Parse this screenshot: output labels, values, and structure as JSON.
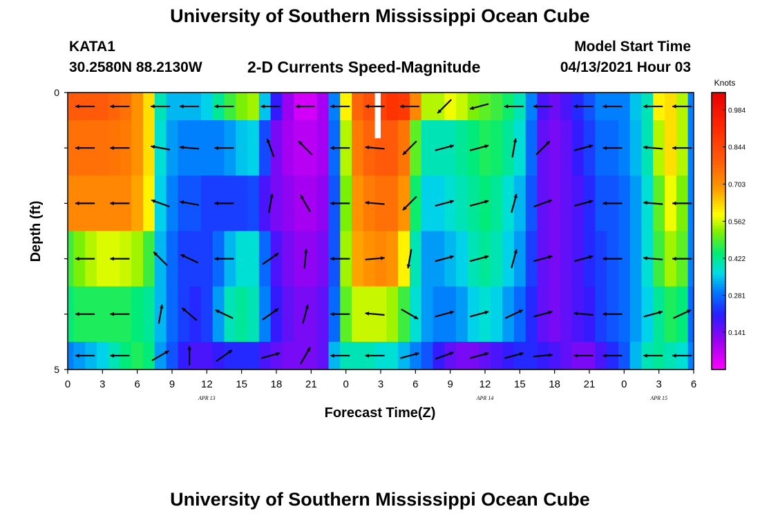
{
  "header": {
    "title": "University of Southern Mississippi Ocean Cube",
    "station_id": "KATA1",
    "station_coords": "30.2580N  88.2130W",
    "chart_title": "2-D Currents Speed-Magnitude",
    "model_start_label": "Model Start Time",
    "model_start_value": "04/13/2021 Hour 03"
  },
  "footer": {
    "title": "University of Southern Mississippi Ocean Cube"
  },
  "colorbar": {
    "unit": "Knots",
    "range": [
      0.0,
      1.05
    ],
    "tick_labels": [
      "0.141",
      "0.281",
      "0.422",
      "0.562",
      "0.703",
      "0.844",
      "0.984"
    ]
  },
  "chart_data": {
    "type": "heatmap",
    "title": "2-D Currents Speed-Magnitude",
    "xlabel": "Forecast Time(Z)",
    "ylabel": "Depth (ft)",
    "x_range_hours": [
      0,
      54
    ],
    "y_range_ft": [
      0,
      5
    ],
    "y_tick_labels": [
      "0",
      "5"
    ],
    "x_tick_labels": [
      "0",
      "3",
      "6",
      "9",
      "12",
      "15",
      "18",
      "21",
      "0",
      "3",
      "6",
      "9",
      "12",
      "15",
      "18",
      "21",
      "0",
      "3",
      "6"
    ],
    "date_labels": [
      {
        "text": "APR 13",
        "hour": 12
      },
      {
        "text": "APR 14",
        "hour": 36
      },
      {
        "text": "APR 15",
        "hour": 51
      }
    ],
    "depth_rows_ft": [
      0.25,
      1.0,
      2.0,
      3.0,
      4.0,
      4.75
    ],
    "time_hours": [
      0,
      1,
      2,
      3,
      4,
      5,
      6,
      7,
      8,
      9,
      10,
      11,
      12,
      13,
      14,
      15,
      16,
      17,
      18,
      19,
      20,
      21,
      22,
      23,
      24,
      25,
      26,
      27,
      28,
      29,
      30,
      31,
      32,
      33,
      34,
      35,
      36,
      37,
      38,
      39,
      40,
      41,
      42,
      43,
      44,
      45,
      46,
      47,
      48,
      49,
      50,
      51,
      52,
      53,
      54
    ],
    "speed_knots": [
      [
        0.8,
        0.8,
        0.8,
        0.8,
        0.78,
        0.76,
        0.7,
        0.62,
        0.4,
        0.34,
        0.34,
        0.34,
        0.36,
        0.42,
        0.48,
        0.52,
        0.54,
        0.35,
        0.2,
        0.11,
        0.05,
        0.05,
        0.1,
        0.3,
        0.6,
        0.78,
        0.82,
        0.86,
        0.9,
        0.88,
        0.72,
        0.55,
        0.55,
        0.58,
        0.56,
        0.52,
        0.5,
        0.48,
        0.45,
        0.4,
        0.3,
        0.18,
        0.15,
        0.18,
        0.22,
        0.26,
        0.3,
        0.3,
        0.3,
        0.35,
        0.4,
        0.6,
        0.62,
        0.55,
        0.3
      ],
      [
        0.76,
        0.76,
        0.76,
        0.76,
        0.75,
        0.74,
        0.7,
        0.62,
        0.38,
        0.32,
        0.3,
        0.3,
        0.3,
        0.3,
        0.32,
        0.35,
        0.36,
        0.25,
        0.14,
        0.1,
        0.08,
        0.08,
        0.1,
        0.28,
        0.55,
        0.74,
        0.78,
        0.8,
        0.8,
        0.75,
        0.5,
        0.4,
        0.4,
        0.4,
        0.42,
        0.44,
        0.46,
        0.45,
        0.42,
        0.38,
        0.28,
        0.16,
        0.14,
        0.16,
        0.2,
        0.24,
        0.28,
        0.28,
        0.3,
        0.34,
        0.4,
        0.55,
        0.62,
        0.55,
        0.3
      ],
      [
        0.72,
        0.72,
        0.72,
        0.72,
        0.72,
        0.72,
        0.68,
        0.6,
        0.36,
        0.3,
        0.26,
        0.26,
        0.24,
        0.24,
        0.24,
        0.24,
        0.25,
        0.18,
        0.14,
        0.12,
        0.1,
        0.1,
        0.12,
        0.26,
        0.52,
        0.7,
        0.74,
        0.76,
        0.76,
        0.7,
        0.45,
        0.36,
        0.36,
        0.38,
        0.4,
        0.42,
        0.44,
        0.42,
        0.38,
        0.34,
        0.26,
        0.16,
        0.14,
        0.16,
        0.18,
        0.22,
        0.26,
        0.26,
        0.28,
        0.32,
        0.38,
        0.5,
        0.58,
        0.52,
        0.3
      ],
      [
        0.48,
        0.52,
        0.55,
        0.57,
        0.57,
        0.56,
        0.54,
        0.48,
        0.34,
        0.28,
        0.24,
        0.24,
        0.24,
        0.28,
        0.34,
        0.38,
        0.38,
        0.28,
        0.18,
        0.14,
        0.12,
        0.12,
        0.14,
        0.26,
        0.54,
        0.68,
        0.7,
        0.72,
        0.7,
        0.6,
        0.4,
        0.32,
        0.32,
        0.34,
        0.36,
        0.4,
        0.42,
        0.4,
        0.36,
        0.32,
        0.24,
        0.16,
        0.14,
        0.16,
        0.18,
        0.22,
        0.24,
        0.26,
        0.28,
        0.32,
        0.38,
        0.48,
        0.54,
        0.5,
        0.3
      ],
      [
        0.44,
        0.46,
        0.46,
        0.46,
        0.46,
        0.46,
        0.44,
        0.42,
        0.34,
        0.28,
        0.24,
        0.22,
        0.24,
        0.32,
        0.4,
        0.42,
        0.4,
        0.3,
        0.2,
        0.16,
        0.14,
        0.14,
        0.16,
        0.28,
        0.5,
        0.56,
        0.56,
        0.56,
        0.54,
        0.48,
        0.38,
        0.32,
        0.3,
        0.3,
        0.32,
        0.36,
        0.38,
        0.36,
        0.32,
        0.28,
        0.22,
        0.16,
        0.14,
        0.16,
        0.18,
        0.2,
        0.24,
        0.26,
        0.28,
        0.32,
        0.36,
        0.42,
        0.46,
        0.44,
        0.28
      ],
      [
        0.3,
        0.32,
        0.34,
        0.36,
        0.4,
        0.44,
        0.46,
        0.44,
        0.32,
        0.26,
        0.2,
        0.18,
        0.18,
        0.2,
        0.22,
        0.22,
        0.22,
        0.18,
        0.16,
        0.14,
        0.14,
        0.14,
        0.16,
        0.34,
        0.4,
        0.4,
        0.4,
        0.38,
        0.38,
        0.34,
        0.3,
        0.26,
        0.2,
        0.16,
        0.14,
        0.14,
        0.16,
        0.18,
        0.2,
        0.22,
        0.22,
        0.2,
        0.18,
        0.16,
        0.14,
        0.14,
        0.18,
        0.22,
        0.26,
        0.34,
        0.4,
        0.42,
        0.4,
        0.38,
        0.3
      ]
    ],
    "vector_times_hours": [
      1.5,
      4.5,
      8,
      10.5,
      13.5,
      17.5,
      20.5,
      23.5,
      26.5,
      29.5,
      32.5,
      35.5,
      38.5,
      41,
      44.5,
      47,
      50.5,
      53
    ],
    "vector_angles_deg": [
      [
        180,
        180,
        180,
        180,
        180,
        180,
        180,
        180,
        180,
        180,
        225,
        195,
        180,
        180,
        180,
        180,
        180,
        180
      ],
      [
        180,
        180,
        170,
        175,
        180,
        110,
        135,
        180,
        175,
        225,
        15,
        15,
        80,
        45,
        15,
        180,
        175,
        180
      ],
      [
        180,
        180,
        160,
        170,
        180,
        80,
        120,
        180,
        175,
        225,
        15,
        15,
        75,
        20,
        15,
        180,
        175,
        180
      ],
      [
        180,
        180,
        135,
        155,
        180,
        35,
        85,
        180,
        5,
        260,
        15,
        15,
        75,
        15,
        15,
        180,
        175,
        180
      ],
      [
        180,
        180,
        80,
        140,
        155,
        35,
        75,
        180,
        175,
        330,
        15,
        15,
        25,
        15,
        175,
        180,
        15,
        25
      ],
      [
        180,
        180,
        30,
        90,
        35,
        15,
        60,
        180,
        180,
        15,
        20,
        15,
        15,
        5,
        180,
        180,
        180,
        180
      ]
    ]
  }
}
